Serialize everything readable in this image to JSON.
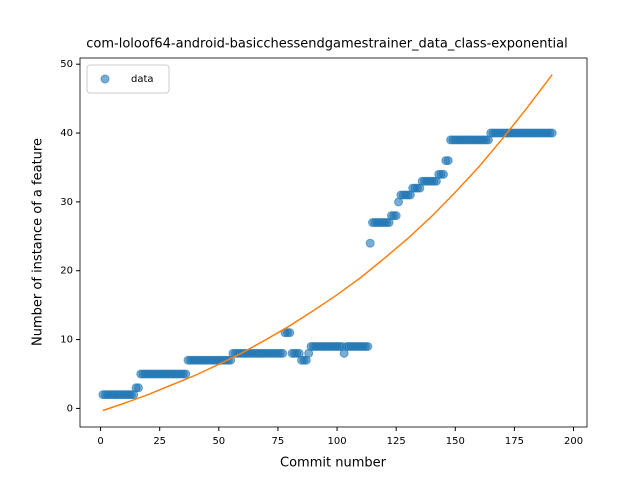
{
  "chart_data": {
    "type": "scatter",
    "title": "com-loloof64-android-basicchessendgamestrainer_data_class-exponential",
    "xlabel": "Commit number",
    "ylabel": "Number of instance of a feature",
    "xlim": [
      -8.7,
      205.7
    ],
    "ylim": [
      -2.7,
      50.9
    ],
    "xticks": [
      0,
      25,
      50,
      75,
      100,
      125,
      150,
      175,
      200
    ],
    "yticks": [
      0,
      10,
      20,
      30,
      40,
      50
    ],
    "legend": "upper left",
    "series": [
      {
        "name": "data",
        "type": "scatter",
        "color": "#1f77b4",
        "x": [
          1,
          2,
          3,
          4,
          5,
          6,
          7,
          8,
          9,
          10,
          11,
          12,
          13,
          14,
          15,
          16,
          17,
          18,
          19,
          20,
          21,
          22,
          23,
          24,
          25,
          26,
          27,
          28,
          29,
          30,
          31,
          32,
          33,
          34,
          35,
          36,
          37,
          38,
          39,
          40,
          41,
          42,
          43,
          44,
          45,
          46,
          47,
          48,
          49,
          50,
          51,
          52,
          53,
          54,
          55,
          56,
          57,
          58,
          59,
          60,
          61,
          62,
          63,
          64,
          65,
          66,
          67,
          68,
          69,
          70,
          71,
          72,
          73,
          74,
          75,
          76,
          77,
          78,
          79,
          80,
          81,
          82,
          83,
          84,
          85,
          86,
          87,
          88,
          89,
          90,
          91,
          92,
          93,
          94,
          95,
          96,
          97,
          98,
          99,
          100,
          101,
          102,
          103,
          104,
          105,
          106,
          107,
          108,
          109,
          110,
          111,
          112,
          113,
          114,
          115,
          116,
          117,
          118,
          119,
          120,
          121,
          122,
          123,
          124,
          125,
          126,
          127,
          128,
          129,
          130,
          131,
          132,
          133,
          134,
          135,
          136,
          137,
          138,
          139,
          140,
          141,
          142,
          143,
          144,
          145,
          146,
          147,
          148,
          149,
          150,
          151,
          152,
          153,
          154,
          155,
          156,
          157,
          158,
          159,
          160,
          161,
          162,
          163,
          164,
          165,
          166,
          167,
          168,
          169,
          170,
          171,
          172,
          173,
          174,
          175,
          176,
          177,
          178,
          179,
          180,
          181,
          182,
          183,
          184,
          185,
          186,
          187,
          188,
          189,
          190,
          191
        ],
        "values": [
          2,
          2,
          2,
          2,
          2,
          2,
          2,
          2,
          2,
          2,
          2,
          2,
          2,
          2,
          3,
          3,
          5,
          5,
          5,
          5,
          5,
          5,
          5,
          5,
          5,
          5,
          5,
          5,
          5,
          5,
          5,
          5,
          5,
          5,
          5,
          5,
          7,
          7,
          7,
          7,
          7,
          7,
          7,
          7,
          7,
          7,
          7,
          7,
          7,
          7,
          7,
          7,
          7,
          7,
          7,
          8,
          8,
          8,
          8,
          8,
          8,
          8,
          8,
          8,
          8,
          8,
          8,
          8,
          8,
          8,
          8,
          8,
          8,
          8,
          8,
          8,
          8,
          11,
          11,
          11,
          8,
          8,
          8,
          8,
          7,
          7,
          7,
          8,
          9,
          9,
          9,
          9,
          9,
          9,
          9,
          9,
          9,
          9,
          9,
          9,
          9,
          9,
          8,
          9,
          9,
          9,
          9,
          9,
          9,
          9,
          9,
          9,
          9,
          24,
          27,
          27,
          27,
          27,
          27,
          27,
          27,
          27,
          28,
          28,
          28,
          30,
          31,
          31,
          31,
          31,
          31,
          32,
          32,
          32,
          32,
          33,
          33,
          33,
          33,
          33,
          33,
          33,
          34,
          34,
          34,
          36,
          36,
          39,
          39,
          39,
          39,
          39,
          39,
          39,
          39,
          39,
          39,
          39,
          39,
          39,
          39,
          39,
          39,
          39,
          40,
          40,
          40,
          40,
          40,
          40,
          40,
          40,
          40,
          40,
          40,
          40,
          40,
          40,
          40,
          40,
          40,
          40,
          40,
          40,
          40,
          40,
          40,
          40,
          40,
          40,
          40
        ]
      },
      {
        "type": "line",
        "color": "#ff7f0e",
        "x": [
          1,
          10,
          20,
          30,
          40,
          50,
          60,
          70,
          80,
          90,
          100,
          110,
          120,
          130,
          140,
          150,
          160,
          170,
          180,
          191
        ],
        "values": [
          -0.3,
          0.75,
          2.0,
          3.4,
          4.8,
          6.4,
          8.1,
          10.0,
          12.0,
          14.2,
          16.5,
          19.0,
          21.8,
          24.7,
          27.9,
          31.4,
          35.1,
          39.2,
          43.5,
          48.5
        ]
      }
    ]
  }
}
